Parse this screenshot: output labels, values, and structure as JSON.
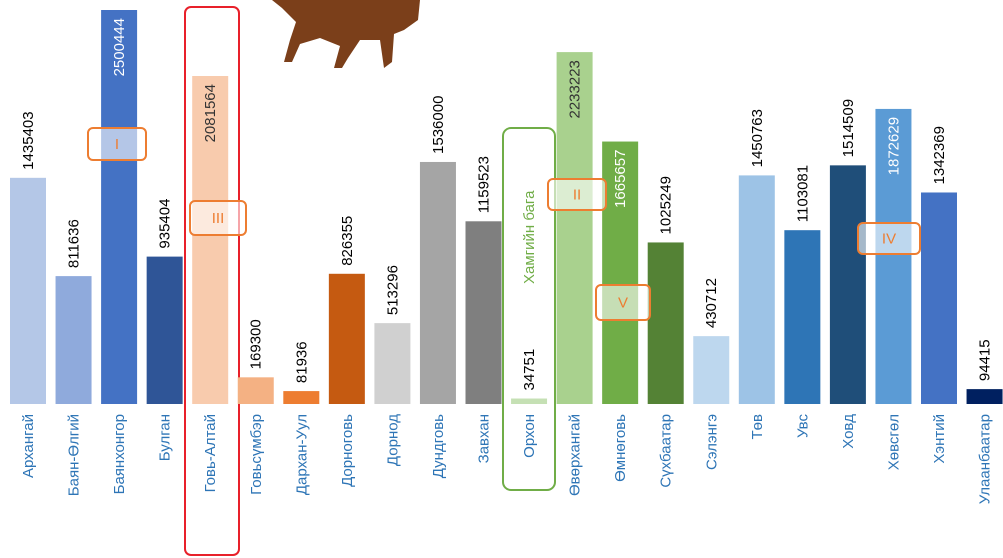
{
  "chart_data": {
    "type": "bar",
    "categories": [
      "Архангай",
      "Баян-Өлгий",
      "Баянхонгор",
      "Булган",
      "Говь-Алтай",
      "Говьсүмбэр",
      "Дархан-Уул",
      "Дорноговь",
      "Дорнод",
      "Дундговь",
      "Завхан",
      "Орхон",
      "Өвөрхангай",
      "Өмнөговь",
      "Сүхбаатар",
      "Сэлэнгэ",
      "Төв",
      "Увс",
      "Ховд",
      "Хөвсгөл",
      "Хэнтий",
      "Улаанбаатар"
    ],
    "values": [
      1435403,
      811636,
      2500444,
      935404,
      2081564,
      169300,
      81936,
      826355,
      513296,
      1536000,
      1159523,
      34751,
      2233223,
      1665657,
      1025249,
      430712,
      1450763,
      1103081,
      1514509,
      1872629,
      1342369,
      94415
    ],
    "colors": [
      "#b4c7e7",
      "#8faadc",
      "#4472c4",
      "#2f5597",
      "#f8cbad",
      "#f4b183",
      "#ed7d31",
      "#c55a11",
      "#d0d0d0",
      "#a5a5a5",
      "#7f7f7f",
      "#c5e0b4",
      "#a9d18e",
      "#70ad47",
      "#548235",
      "#bdd7ee",
      "#9dc3e6",
      "#2e75b6",
      "#1f4e79",
      "#5b9bd5",
      "#4472c4",
      "#002060"
    ],
    "annotations": [
      "I",
      "II",
      "III",
      "IV",
      "V",
      "Хамгийн бага"
    ]
  }
}
